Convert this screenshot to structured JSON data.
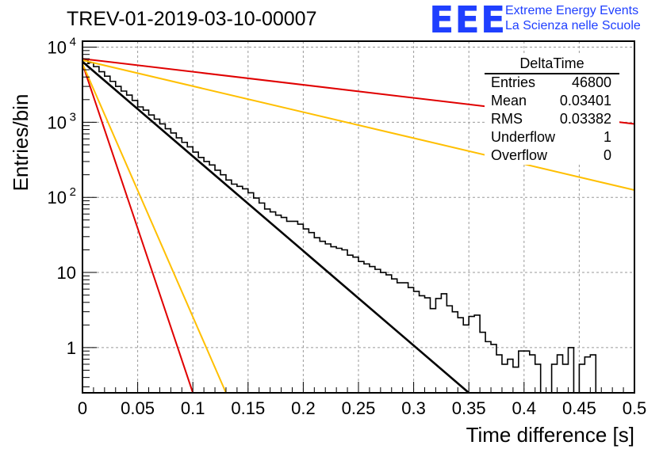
{
  "title": "TREV-01-2019-03-10-00007",
  "logo": {
    "text": "EEE",
    "line1": "Extreme Energy Events",
    "line2": "La Scienza nelle Scuole",
    "color": "#1f3fff"
  },
  "stats": {
    "title": "DeltaTime",
    "rows": [
      {
        "label": "Entries",
        "value": "46800"
      },
      {
        "label": "Mean",
        "value": "0.03401"
      },
      {
        "label": "RMS",
        "value": "0.03382"
      },
      {
        "label": "Underflow",
        "value": "1"
      },
      {
        "label": "Overflow",
        "value": "0"
      }
    ]
  },
  "chart_data": {
    "type": "line",
    "title": "TREV-01-2019-03-10-00007",
    "xlabel": "Time difference [s]",
    "ylabel": "Entries/bin",
    "xlim": [
      0,
      0.5
    ],
    "ylim": [
      0.25,
      12000
    ],
    "yscale": "log",
    "grid": true,
    "x_ticks": [
      "0",
      "0.05",
      "0.1",
      "0.15",
      "0.2",
      "0.25",
      "0.3",
      "0.35",
      "0.4",
      "0.45",
      "0.5"
    ],
    "y_ticks": [
      {
        "value": 1,
        "label": "1"
      },
      {
        "value": 10,
        "label": "10"
      },
      {
        "value": 100,
        "label": "10",
        "exp": "2"
      },
      {
        "value": 1000,
        "label": "10",
        "exp": "3"
      },
      {
        "value": 10000,
        "label": "10",
        "exp": "4"
      }
    ],
    "histogram": {
      "bin_width": 0.005,
      "values": [
        6800,
        6200,
        5500,
        4700,
        4100,
        3500,
        3000,
        2600,
        2300,
        1950,
        1600,
        1450,
        1250,
        1100,
        950,
        820,
        720,
        620,
        540,
        470,
        400,
        340,
        300,
        270,
        230,
        200,
        170,
        150,
        140,
        130,
        115,
        98,
        84,
        70,
        64,
        58,
        54,
        48,
        48,
        44,
        38,
        34,
        29,
        26,
        24,
        22,
        21,
        20,
        17,
        16,
        14,
        13,
        12,
        11,
        10,
        9.3,
        8.2,
        7.3,
        7.3,
        6.3,
        5.6,
        4.9,
        4.6,
        3.3,
        4.5,
        5.2,
        3.6,
        3.0,
        2.5,
        2.0,
        2.6,
        2.7,
        1.6,
        1.2,
        1.1,
        0.8,
        0.6,
        0.7,
        0.55,
        0.9,
        0.9,
        0.8,
        0.6,
        0.0,
        0.0,
        0.6,
        0.8,
        0.6,
        1.0,
        0.0,
        0.6,
        0.75,
        0.8,
        0.0,
        0.0,
        0.0,
        0.0,
        0.0,
        0.0,
        0.0
      ]
    },
    "series": [
      {
        "color": "#000000",
        "type": "fit",
        "x": [
          0.0,
          0.35
        ],
        "y": [
          6400,
          0.25
        ]
      },
      {
        "color": "#e00000",
        "type": "line",
        "x": [
          0.0,
          0.5
        ],
        "y": [
          7000,
          950
        ]
      },
      {
        "color": "#ffbf00",
        "type": "line",
        "x": [
          0.0,
          0.5
        ],
        "y": [
          6700,
          125
        ]
      },
      {
        "color": "#e00000",
        "type": "line",
        "x": [
          0.0,
          0.1
        ],
        "y": [
          6000,
          0.25
        ]
      },
      {
        "color": "#ffbf00",
        "type": "line",
        "x": [
          0.0,
          0.13
        ],
        "y": [
          6000,
          0.25
        ]
      }
    ]
  }
}
